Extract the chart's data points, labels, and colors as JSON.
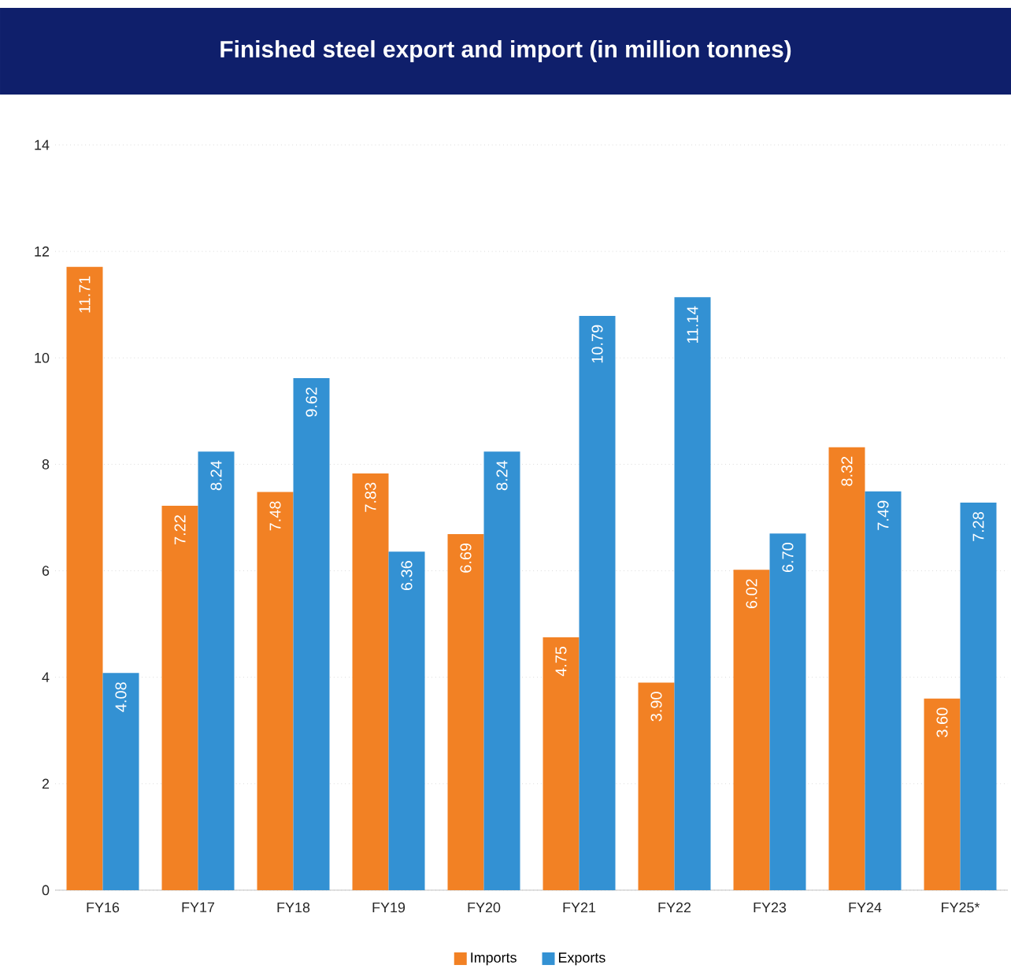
{
  "chart_data": {
    "type": "bar",
    "title": "Finished steel export and import (in million tonnes)",
    "categories": [
      "FY16",
      "FY17",
      "FY18",
      "FY19",
      "FY20",
      "FY21",
      "FY22",
      "FY23",
      "FY24",
      "FY25*"
    ],
    "series": [
      {
        "name": "Imports",
        "color": "#f28124",
        "values": [
          11.71,
          7.22,
          7.48,
          7.83,
          6.69,
          4.75,
          3.9,
          6.02,
          8.32,
          3.6
        ],
        "value_labels": [
          "11.71",
          "7.22",
          "7.48",
          "7.83",
          "6.69",
          "4.75",
          "3.90",
          "6.02",
          "8.32",
          "3.60"
        ]
      },
      {
        "name": "Exports",
        "color": "#3391d3",
        "values": [
          4.08,
          8.24,
          9.62,
          6.36,
          8.24,
          10.79,
          11.14,
          6.7,
          7.49,
          7.28
        ],
        "value_labels": [
          "4.08",
          "8.24",
          "9.62",
          "6.36",
          "8.24",
          "10.79",
          "11.14",
          "6.70",
          "7.49",
          "7.28"
        ]
      }
    ],
    "ylim": [
      0,
      14
    ],
    "yticks": [
      0,
      2,
      4,
      6,
      8,
      10,
      12,
      14
    ],
    "grid": "y",
    "legend": "bottom"
  }
}
